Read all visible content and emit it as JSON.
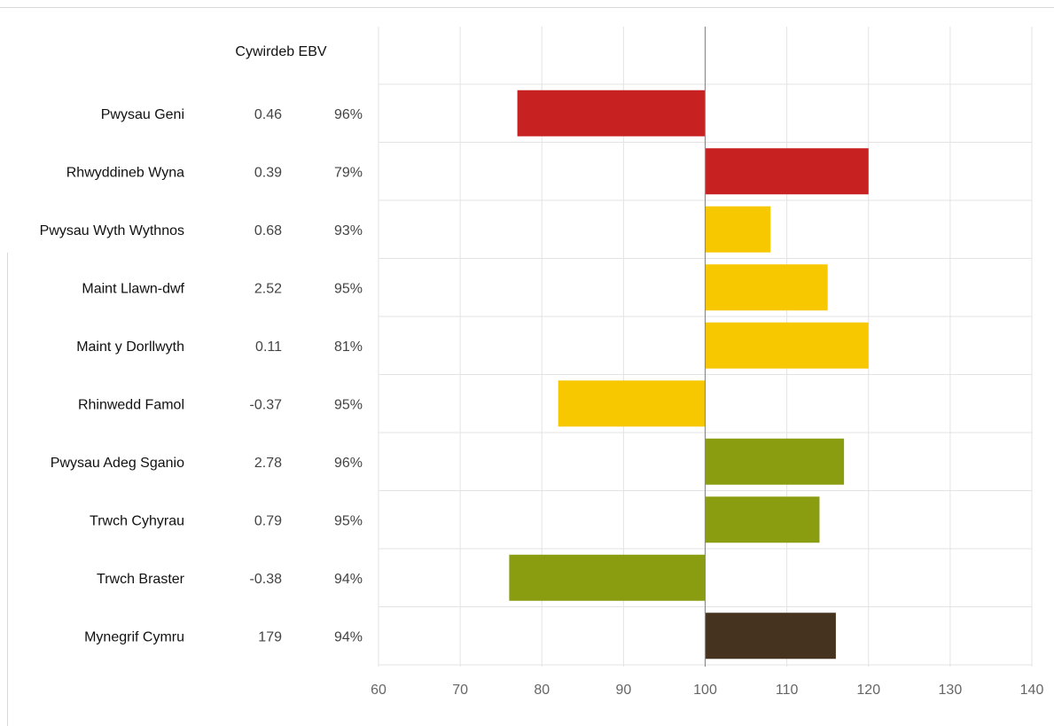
{
  "chart_data": {
    "type": "bar",
    "orientation": "horizontal",
    "baseline": 100,
    "xlim": [
      60,
      140
    ],
    "xticks": [
      60,
      70,
      80,
      90,
      100,
      110,
      120,
      130,
      140
    ],
    "column_header": "Cywirdeb EBV",
    "grid": true,
    "colors": {
      "red": "#c82121",
      "yellow": "#f7c800",
      "olive": "#8a9c0f",
      "brown": "#45321f"
    },
    "rows": [
      {
        "label": "Pwysau Geni",
        "ebv": "0.46",
        "accuracy": "96%",
        "value": 77,
        "color": "#c82121"
      },
      {
        "label": "Rhwyddineb Wyna",
        "ebv": "0.39",
        "accuracy": "79%",
        "value": 120,
        "color": "#c82121"
      },
      {
        "label": "Pwysau Wyth Wythnos",
        "ebv": "0.68",
        "accuracy": "93%",
        "value": 108,
        "color": "#f7c800"
      },
      {
        "label": "Maint Llawn-dwf",
        "ebv": "2.52",
        "accuracy": "95%",
        "value": 115,
        "color": "#f7c800"
      },
      {
        "label": "Maint y Dorllwyth",
        "ebv": "0.11",
        "accuracy": "81%",
        "value": 120,
        "color": "#f7c800"
      },
      {
        "label": "Rhinwedd Famol",
        "ebv": "-0.37",
        "accuracy": "95%",
        "value": 82,
        "color": "#f7c800"
      },
      {
        "label": "Pwysau Adeg Sganio",
        "ebv": "2.78",
        "accuracy": "96%",
        "value": 117,
        "color": "#8a9c0f"
      },
      {
        "label": "Trwch Cyhyrau",
        "ebv": "0.79",
        "accuracy": "95%",
        "value": 114,
        "color": "#8a9c0f"
      },
      {
        "label": "Trwch Braster",
        "ebv": "-0.38",
        "accuracy": "94%",
        "value": 76,
        "color": "#8a9c0f"
      },
      {
        "label": "Mynegrif Cymru",
        "ebv": "179",
        "accuracy": "94%",
        "value": 116,
        "color": "#45321f"
      }
    ]
  }
}
